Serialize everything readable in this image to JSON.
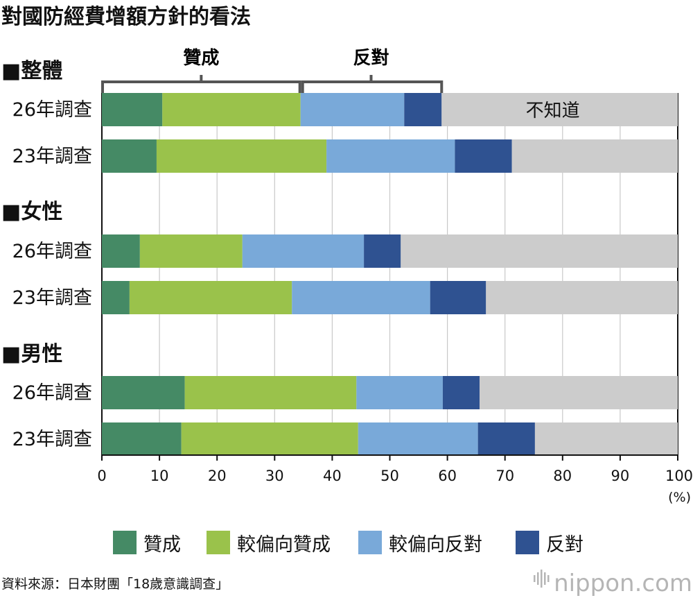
{
  "chart_data": {
    "type": "bar",
    "orientation": "horizontal",
    "stacked": true,
    "title": "對國防經費增額方針的看法",
    "unit": "(%)",
    "xlim": [
      0,
      100
    ],
    "xticks": [
      0,
      10,
      20,
      30,
      40,
      50,
      60,
      70,
      80,
      90,
      100
    ],
    "grid": true,
    "legend_position": "bottom",
    "series": [
      {
        "name": "贊成",
        "color": "#458a65"
      },
      {
        "name": "較偏向贊成",
        "color": "#9ac24b"
      },
      {
        "name": "較偏向反對",
        "color": "#79a9d9"
      },
      {
        "name": "反對",
        "color": "#2f5291"
      },
      {
        "name": "不知道",
        "color": "#cccccc"
      }
    ],
    "groups": [
      {
        "label": "■整體",
        "rows": [
          {
            "label": "26年調查",
            "values": [
              10.5,
              24.0,
              18.0,
              6.5,
              41.0
            ]
          },
          {
            "label": "23年調查",
            "values": [
              9.5,
              29.5,
              22.3,
              9.9,
              28.8
            ]
          }
        ]
      },
      {
        "label": "■女性",
        "rows": [
          {
            "label": "26年調查",
            "values": [
              6.6,
              17.8,
              21.1,
              6.4,
              48.1
            ]
          },
          {
            "label": "23年調查",
            "values": [
              4.8,
              28.2,
              24.0,
              9.7,
              33.3
            ]
          }
        ]
      },
      {
        "label": "■男性",
        "rows": [
          {
            "label": "26年調查",
            "values": [
              14.4,
              29.8,
              15.0,
              6.4,
              34.4
            ]
          },
          {
            "label": "23年調查",
            "values": [
              13.8,
              30.7,
              20.8,
              9.9,
              24.8
            ]
          }
        ]
      }
    ],
    "annotations": {
      "bracket_agree": "贊成",
      "bracket_disagree": "反對",
      "dont_know": "不知道"
    },
    "source": "資料來源：日本財團「18歲意識調查」"
  },
  "brand": {
    "logo": "nippon.com"
  }
}
